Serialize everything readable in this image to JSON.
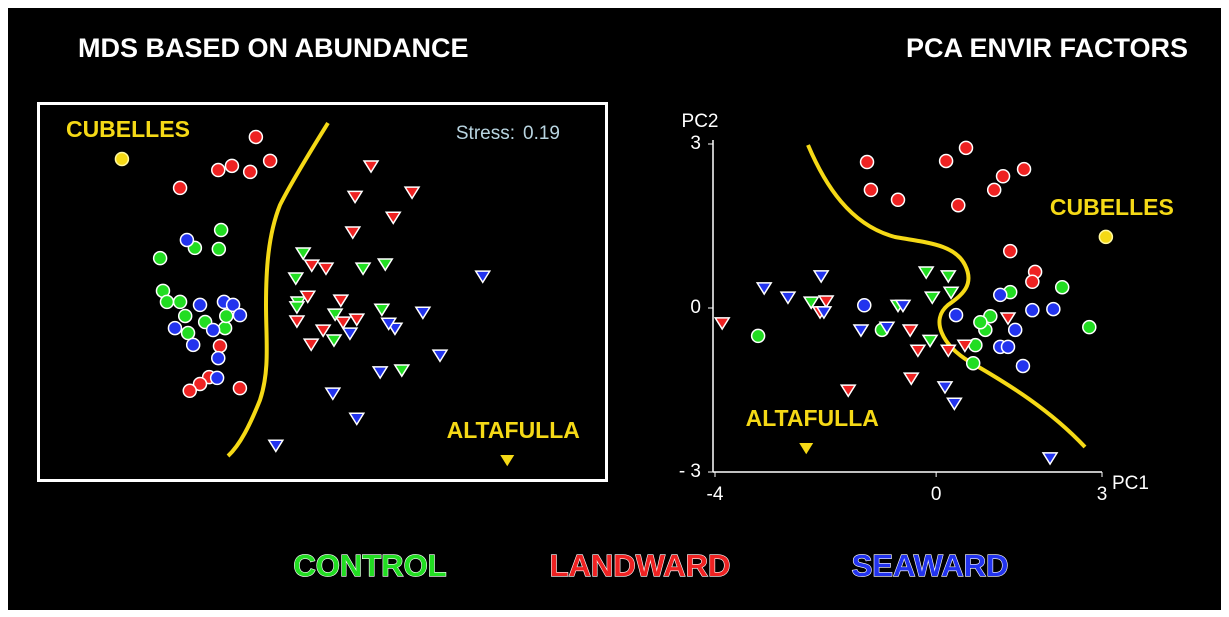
{
  "chart_data": [
    {
      "type": "scatter",
      "title": "MDS BASED ON ABUNDANCE",
      "xlim": [
        0,
        100
      ],
      "ylim": [
        0,
        100
      ],
      "frame": true,
      "stress_label": "Stress:",
      "stress": 0.19,
      "annotations": [
        {
          "text": "CUBELLES",
          "x": 14.9,
          "y": 85.0,
          "marker": "circle"
        },
        {
          "text": "ALTAFULLA",
          "x": 82.5,
          "y": 5.8,
          "marker": "triangle"
        }
      ],
      "series": [
        {
          "name": "CONTROL",
          "color": "#22dd22",
          "x": [
            21.6,
            27.7,
            32.3,
            31.9,
            22.1,
            22.8,
            25.1,
            26.0,
            29.5,
            33.0,
            26.5,
            33.2,
            46.7,
            61.1,
            57.2,
            45.4,
            45.8,
            45.6,
            52.3,
            60.5,
            64.0,
            52.1
          ],
          "y": [
            58.9,
            61.6,
            66.3,
            61.3,
            50.3,
            47.4,
            47.4,
            43.7,
            42.1,
            40.5,
            39.2,
            43.7,
            60.3,
            57.4,
            56.3,
            53.7,
            47.4,
            46.1,
            44.2,
            45.5,
            29.5,
            37.4
          ],
          "marker": [
            "circle",
            "circle",
            "circle",
            "circle",
            "circle",
            "circle",
            "circle",
            "circle",
            "circle",
            "circle",
            "circle",
            "circle",
            "triangle",
            "triangle",
            "triangle",
            "triangle",
            "triangle",
            "triangle",
            "triangle",
            "triangle",
            "triangle",
            "triangle"
          ]
        },
        {
          "name": "LANDWARD",
          "color": "#ee2222",
          "x": [
            38.4,
            31.8,
            34.2,
            37.4,
            40.9,
            25.1,
            32.1,
            30.2,
            28.6,
            26.8,
            35.6,
            58.6,
            65.8,
            62.5,
            55.8,
            55.4,
            48.2,
            50.7,
            47.5,
            45.6,
            50.2,
            53.7,
            56.1,
            53.3,
            48.1
          ],
          "y": [
            90.8,
            82.1,
            83.2,
            81.6,
            84.5,
            77.4,
            35.8,
            27.6,
            25.8,
            24.0,
            24.7,
            83.2,
            76.3,
            69.7,
            75.2,
            65.8,
            57.1,
            56.3,
            48.9,
            42.4,
            40.0,
            42.1,
            42.9,
            47.9,
            36.3
          ],
          "marker": [
            "circle",
            "circle",
            "circle",
            "circle",
            "circle",
            "circle",
            "circle",
            "circle",
            "circle",
            "circle",
            "circle",
            "triangle",
            "triangle",
            "triangle",
            "triangle",
            "triangle",
            "triangle",
            "triangle",
            "triangle",
            "triangle",
            "triangle",
            "triangle",
            "triangle",
            "triangle",
            "triangle"
          ]
        },
        {
          "name": "SEAWARD",
          "color": "#2233ee",
          "x": [
            26.3,
            28.6,
            24.2,
            27.4,
            31.8,
            31.6,
            32.8,
            34.4,
            35.6,
            30.9,
            78.2,
            67.7,
            62.8,
            61.7,
            54.9,
            70.7,
            60.2,
            51.9,
            56.1,
            41.9
          ],
          "y": [
            63.7,
            46.6,
            40.5,
            36.1,
            32.6,
            27.4,
            47.4,
            46.6,
            43.9,
            40.0,
            54.2,
            44.7,
            40.5,
            41.8,
            39.2,
            33.4,
            29.0,
            23.4,
            16.8,
            9.7
          ],
          "marker": [
            "circle",
            "circle",
            "circle",
            "circle",
            "circle",
            "circle",
            "circle",
            "circle",
            "circle",
            "circle",
            "triangle",
            "triangle",
            "triangle",
            "triangle",
            "triangle",
            "triangle",
            "triangle",
            "triangle",
            "triangle",
            "triangle"
          ]
        }
      ]
    },
    {
      "type": "scatter",
      "title": "PCA ENVIR FACTORS",
      "x_label": "PC1",
      "y_label": "PC2",
      "xlim": [
        -4,
        3
      ],
      "ylim": [
        -3,
        3
      ],
      "xticks": [
        -4,
        0,
        3
      ],
      "yticks": [
        3,
        0,
        {
          "value": -3,
          "label": "- 3"
        }
      ],
      "annotations": [
        {
          "text": "CUBELLES",
          "x": 3.07,
          "y": 1.3,
          "marker": "circle"
        },
        {
          "text": "ALTAFULLA",
          "x": -2.35,
          "y": -2.56,
          "marker": "triangle"
        }
      ],
      "series": [
        {
          "color": "#22dd22",
          "x": [
            -3.22,
            -0.98,
            0.98,
            0.89,
            1.34,
            2.28,
            2.77,
            0.67,
            0.71,
            0.8,
            -0.18,
            0.22,
            0.27,
            -0.07,
            -0.69,
            -2.26,
            -0.11
          ],
          "y": [
            -0.51,
            -0.4,
            -0.15,
            -0.4,
            0.29,
            0.38,
            -0.35,
            -1.01,
            -0.68,
            -0.26,
            0.66,
            0.59,
            0.29,
            0.2,
            0.05,
            0.11,
            -0.59
          ],
          "marker": [
            "circle",
            "circle",
            "circle",
            "circle",
            "circle",
            "circle",
            "circle",
            "circle",
            "circle",
            "circle",
            "triangle",
            "triangle",
            "triangle",
            "triangle",
            "triangle",
            "triangle",
            "triangle"
          ]
        },
        {
          "color": "#ee2222",
          "x": [
            -1.25,
            -1.18,
            -0.69,
            0.18,
            0.54,
            0.4,
            1.21,
            1.05,
            1.59,
            1.34,
            1.79,
            1.74,
            -3.87,
            -1.99,
            -2.1,
            -1.59,
            -0.47,
            -0.33,
            0.22,
            -0.45,
            0.52,
            1.3
          ],
          "y": [
            2.67,
            2.16,
            1.98,
            2.69,
            2.93,
            1.88,
            2.41,
            2.16,
            2.54,
            1.04,
            0.66,
            0.48,
            -0.27,
            0.13,
            -0.07,
            -1.5,
            -0.4,
            -0.77,
            -0.77,
            -1.28,
            -0.68,
            -0.18
          ],
          "marker": [
            "circle",
            "circle",
            "circle",
            "circle",
            "circle",
            "circle",
            "circle",
            "circle",
            "circle",
            "circle",
            "circle",
            "circle",
            "triangle",
            "triangle",
            "triangle",
            "triangle",
            "triangle",
            "triangle",
            "triangle",
            "triangle",
            "triangle",
            "triangle"
          ]
        },
        {
          "color": "#2233ee",
          "x": [
            -1.3,
            1.16,
            0.36,
            1.16,
            1.74,
            2.12,
            1.43,
            1.57,
            1.3,
            -3.11,
            -2.68,
            -2.08,
            -1.36,
            -0.89,
            0.16,
            0.33,
            2.06,
            -2.03,
            -0.6
          ],
          "y": [
            0.05,
            0.24,
            -0.13,
            -0.71,
            -0.04,
            -0.02,
            -0.4,
            -1.06,
            -0.71,
            0.37,
            0.2,
            0.59,
            -0.4,
            -0.35,
            -1.44,
            -1.74,
            -2.74,
            -0.07,
            0.05
          ],
          "marker": [
            "circle",
            "circle",
            "circle",
            "circle",
            "circle",
            "circle",
            "circle",
            "circle",
            "circle",
            "triangle",
            "triangle",
            "triangle",
            "triangle",
            "triangle",
            "triangle",
            "triangle",
            "triangle",
            "triangle",
            "triangle"
          ]
        }
      ]
    }
  ]
}
